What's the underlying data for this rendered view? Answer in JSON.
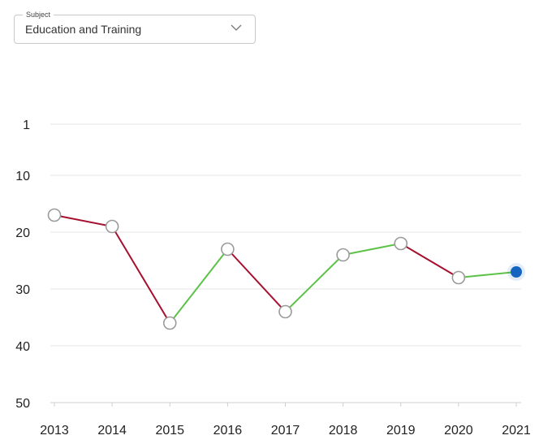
{
  "subject_select": {
    "label": "Subject",
    "value": "Education and Training",
    "icon": "chevron-down-icon"
  },
  "chart_data": {
    "type": "line",
    "title": "",
    "xlabel": "",
    "ylabel": "",
    "x": [
      "2013",
      "2014",
      "2015",
      "2016",
      "2017",
      "2018",
      "2019",
      "2020",
      "2021"
    ],
    "values": [
      17,
      19,
      36,
      23,
      34,
      24,
      22,
      28,
      27
    ],
    "y_axis": {
      "inverted": true,
      "ylim": [
        0,
        50
      ],
      "ticks": [
        1,
        10,
        20,
        30,
        40,
        50
      ]
    },
    "grid": true,
    "colors": {
      "improve": "#5cc247",
      "decline": "#a6102e",
      "marker_stroke": "#9a9a9a",
      "current": "#1565c0",
      "grid": "#e6e6e6"
    },
    "highlight_index": 8
  }
}
